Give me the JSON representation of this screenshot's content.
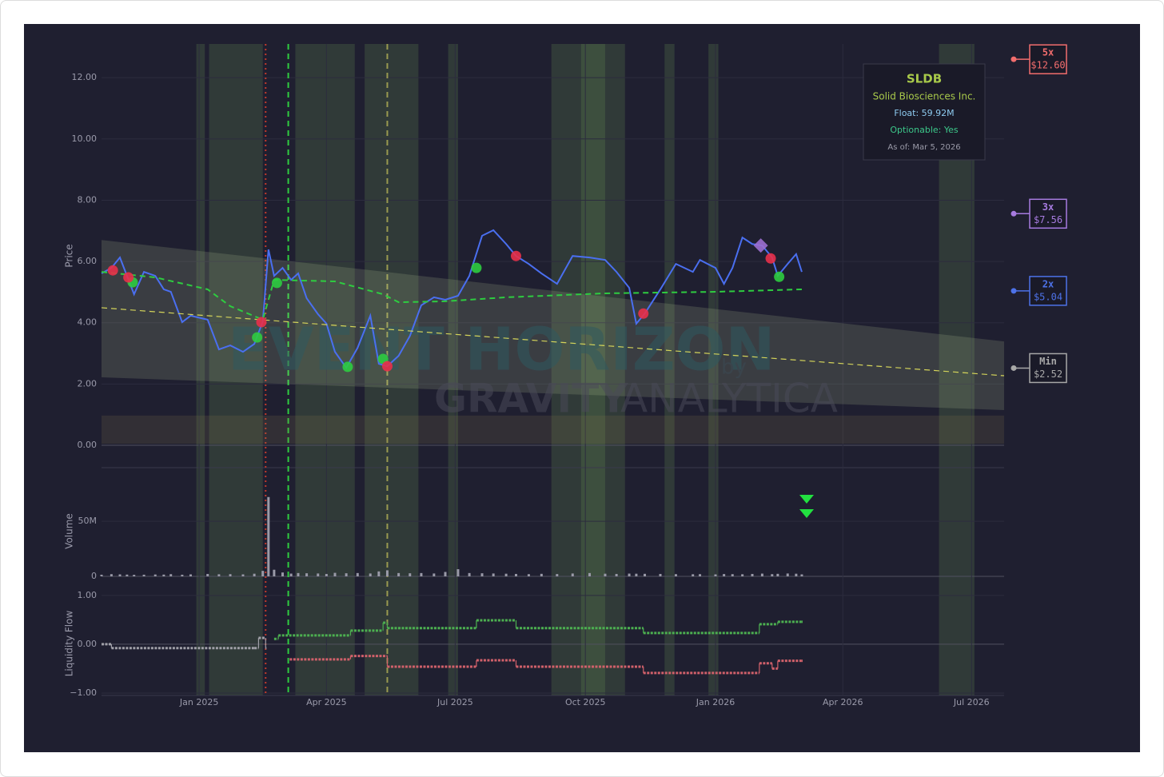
{
  "chart_data": [
    {
      "type": "line",
      "ylabel": "Price",
      "xlim": [
        "2024-10-24",
        "2026-07-24"
      ],
      "ylim": [
        -0.73,
        13.1
      ],
      "yticks": [
        {
          "value": 0,
          "label": "0.00"
        },
        {
          "value": 2,
          "label": "2.00"
        },
        {
          "value": 4,
          "label": "4.00"
        },
        {
          "value": 6,
          "label": "6.00"
        },
        {
          "value": 8,
          "label": "8.00"
        },
        {
          "value": 10,
          "label": "10.00"
        },
        {
          "value": 12,
          "label": "12.00"
        }
      ],
      "grid": true,
      "series": [
        {
          "color": "#4a6ff0",
          "width": 2,
          "x": [
            "2024-10-24",
            "2024-10-31",
            "2024-11-06",
            "2024-11-11",
            "2024-11-16",
            "2024-11-23",
            "2024-12-01",
            "2024-12-07",
            "2024-12-12",
            "2024-12-20",
            "2024-12-26",
            "2025-01-07",
            "2025-01-15",
            "2025-01-23",
            "2025-02-01",
            "2025-02-09",
            "2025-02-15",
            "2025-02-19",
            "2025-02-23",
            "2025-03-01",
            "2025-03-07",
            "2025-03-12",
            "2025-03-18",
            "2025-03-26",
            "2025-04-01",
            "2025-04-07",
            "2025-04-15",
            "2025-04-23",
            "2025-05-02",
            "2025-05-08",
            "2025-05-14",
            "2025-05-22",
            "2025-05-30",
            "2025-06-07",
            "2025-06-16",
            "2025-06-24",
            "2025-07-03",
            "2025-07-11",
            "2025-07-20",
            "2025-07-28",
            "2025-08-06",
            "2025-08-13",
            "2025-08-22",
            "2025-08-31",
            "2025-09-11",
            "2025-09-22",
            "2025-10-04",
            "2025-10-15",
            "2025-10-23",
            "2025-11-01",
            "2025-11-06",
            "2025-11-12",
            "2025-11-23",
            "2025-12-04",
            "2025-12-16",
            "2025-12-21",
            "2026-01-01",
            "2026-01-07",
            "2026-01-13",
            "2026-01-20",
            "2026-01-27",
            "2026-02-03",
            "2026-02-10",
            "2026-02-14",
            "2026-02-21",
            "2026-02-27",
            "2026-03-03"
          ],
          "values": [
            5.61,
            5.79,
            6.13,
            5.53,
            4.93,
            5.66,
            5.53,
            5.09,
            5.01,
            4.02,
            4.23,
            4.1,
            3.13,
            3.26,
            3.05,
            3.31,
            4.04,
            6.39,
            5.53,
            5.79,
            5.4,
            5.61,
            4.8,
            4.28,
            3.97,
            3.05,
            2.53,
            3.18,
            4.23,
            2.66,
            2.58,
            2.92,
            3.57,
            4.57,
            4.83,
            4.75,
            4.88,
            5.53,
            6.84,
            7.02,
            6.57,
            6.18,
            5.92,
            5.61,
            5.27,
            6.18,
            6.13,
            6.05,
            5.66,
            5.14,
            3.97,
            4.3,
            5.09,
            5.92,
            5.66,
            6.05,
            5.79,
            5.27,
            5.79,
            6.78,
            6.57,
            6.52,
            6.13,
            5.53,
            5.92,
            6.24,
            5.66
          ]
        },
        {
          "color": "#2ecc40",
          "width": 2,
          "dash": "dash",
          "x": [
            "2024-10-24",
            "2024-12-01",
            "2025-01-07",
            "2025-01-23",
            "2025-02-15",
            "2025-02-23",
            "2025-04-07",
            "2025-05-11",
            "2025-05-22",
            "2025-06-24",
            "2025-08-06",
            "2025-10-15",
            "2026-01-01",
            "2026-03-03"
          ],
          "values": [
            5.66,
            5.48,
            5.09,
            4.54,
            4.1,
            5.4,
            5.35,
            4.93,
            4.67,
            4.7,
            4.83,
            4.96,
            5.01,
            5.09
          ]
        },
        {
          "color": "#d4d45a",
          "width": 1.2,
          "dash": "dash",
          "x": [
            "2024-10-24",
            "2026-07-24"
          ],
          "values": [
            4.49,
            2.27
          ]
        }
      ],
      "channel": {
        "color": "#c8d8a0",
        "x": [
          "2024-10-24",
          "2026-07-24"
        ],
        "upper": [
          6.7,
          3.39
        ],
        "lower": [
          2.22,
          1.15
        ]
      },
      "support_band": [
        0.05,
        0.97
      ],
      "highlight_periods": [
        [
          "2024-12-30",
          "2025-01-05"
        ],
        [
          "2025-01-08",
          "2025-02-15"
        ],
        [
          "2025-03-10",
          "2025-04-21"
        ],
        [
          "2025-04-28",
          "2025-06-05"
        ],
        [
          "2025-06-26",
          "2025-07-03"
        ],
        [
          "2025-09-07",
          "2025-10-29"
        ],
        [
          "2025-09-28",
          "2025-10-15"
        ],
        [
          "2025-11-26",
          "2025-12-03"
        ],
        [
          "2025-12-27",
          "2026-01-03"
        ],
        [
          "2026-06-08",
          "2026-07-03"
        ]
      ],
      "highlight_color": "#6f9a55",
      "event_lines": [
        {
          "x": "2025-02-17",
          "color": "#c0392b",
          "dash": "dot"
        },
        {
          "x": "2025-03-05",
          "color": "#2ecc40",
          "dash": "dash"
        },
        {
          "x": "2025-05-14",
          "color": "#9a9a50",
          "dash": "dash"
        }
      ],
      "signals": [
        {
          "color": "#2ecc40",
          "marker": "circle",
          "x": [
            "2024-11-15",
            "2025-02-11",
            "2025-02-25",
            "2025-04-16",
            "2025-05-11",
            "2025-07-16",
            "2026-02-15"
          ],
          "values": [
            5.32,
            3.52,
            5.3,
            2.56,
            2.82,
            5.79,
            5.5
          ]
        },
        {
          "color": "#e8304a",
          "marker": "circle",
          "x": [
            "2024-11-01",
            "2024-11-12",
            "2025-02-14",
            "2025-05-14",
            "2025-08-13",
            "2025-11-11",
            "2026-02-09"
          ],
          "values": [
            5.71,
            5.48,
            4.02,
            2.58,
            6.18,
            4.3,
            6.1
          ]
        },
        {
          "color": "#9b6fd0",
          "marker": "diamond",
          "x": [
            "2026-02-02"
          ],
          "values": [
            6.52
          ]
        }
      ],
      "levels": {
        "names": [
          "5x",
          "3x",
          "2x",
          "Min"
        ],
        "values": [
          12.6,
          7.56,
          5.04,
          2.52
        ],
        "value_labels": [
          "$12.60",
          "$7.56",
          "$5.04",
          "$2.52"
        ],
        "colors": [
          "#f26d6d",
          "#a77be0",
          "#4d72e8",
          "#a8a8a8"
        ]
      }
    },
    {
      "type": "bar",
      "ylabel": "Volume",
      "xlim": [
        "2024-10-24",
        "2026-07-24"
      ],
      "ylim": [
        0,
        82000000
      ],
      "yticks": [
        0,
        {
          "value": 50000000,
          "label": "50M"
        }
      ],
      "color": "#9a9aa8",
      "x": [
        "2024-10-24",
        "2024-10-31",
        "2024-11-06",
        "2024-11-11",
        "2024-11-16",
        "2024-11-23",
        "2024-12-01",
        "2024-12-07",
        "2024-12-12",
        "2024-12-20",
        "2024-12-26",
        "2025-01-07",
        "2025-01-15",
        "2025-01-23",
        "2025-02-01",
        "2025-02-09",
        "2025-02-15",
        "2025-02-19",
        "2025-02-23",
        "2025-03-01",
        "2025-03-07",
        "2025-03-12",
        "2025-03-18",
        "2025-03-26",
        "2025-04-01",
        "2025-04-07",
        "2025-04-15",
        "2025-04-23",
        "2025-05-02",
        "2025-05-08",
        "2025-05-14",
        "2025-05-22",
        "2025-05-30",
        "2025-06-07",
        "2025-06-16",
        "2025-06-24",
        "2025-07-03",
        "2025-07-11",
        "2025-07-20",
        "2025-07-28",
        "2025-08-06",
        "2025-08-13",
        "2025-08-22",
        "2025-08-31",
        "2025-09-11",
        "2025-09-22",
        "2025-10-04",
        "2025-10-15",
        "2025-10-23",
        "2025-11-01",
        "2025-11-06",
        "2025-11-12",
        "2025-11-23",
        "2025-12-04",
        "2025-12-16",
        "2025-12-21",
        "2026-01-01",
        "2026-01-07",
        "2026-01-13",
        "2026-01-20",
        "2026-01-27",
        "2026-02-03",
        "2026-02-10",
        "2026-02-14",
        "2026-02-21",
        "2026-02-27",
        "2026-03-03"
      ],
      "values": [
        1500000,
        2000000,
        1800000,
        1600000,
        1400000,
        1500000,
        1700000,
        1600000,
        2000000,
        1500000,
        1800000,
        2200000,
        1900000,
        2000000,
        1800000,
        2400000,
        5000000,
        72000000,
        6000000,
        3500000,
        2500000,
        3000000,
        2800000,
        2600000,
        2200000,
        3200000,
        2800000,
        3000000,
        2600000,
        4500000,
        5500000,
        3000000,
        2800000,
        3000000,
        2600000,
        4000000,
        6500000,
        3000000,
        2800000,
        2600000,
        2400000,
        2200000,
        2000000,
        2300000,
        2100000,
        2600000,
        3000000,
        2400000,
        2200000,
        2500000,
        2400000,
        2300000,
        2200000,
        2000000,
        1900000,
        2000000,
        1800000,
        2100000,
        2000000,
        1900000,
        2200000,
        2500000,
        2000000,
        2300000,
        2600000,
        2400000,
        1800000
      ]
    },
    {
      "type": "line",
      "ylabel": "Liquidity Flow",
      "xlim": [
        "2024-10-24",
        "2026-07-24"
      ],
      "ylim": [
        -1.05,
        1.08
      ],
      "yticks": [
        {
          "value": -1,
          "label": "−1.00"
        },
        {
          "value": 0,
          "label": "0.00"
        },
        {
          "value": 1,
          "label": "1.00"
        }
      ],
      "xticks": [
        {
          "value": "2025-01-01",
          "label": "Jan 2025"
        },
        {
          "value": "2025-04-01",
          "label": "Apr 2025"
        },
        {
          "value": "2025-07-01",
          "label": "Jul 2025"
        },
        {
          "value": "2025-10-01",
          "label": "Oct 2025"
        },
        {
          "value": "2026-01-01",
          "label": "Jan 2026"
        },
        {
          "value": "2026-04-01",
          "label": "Apr 2026"
        },
        {
          "value": "2026-07-01",
          "label": "Jul 2026"
        }
      ],
      "step": true,
      "series": [
        {
          "color": "#a0a0a8",
          "x": [
            "2024-10-24",
            "2024-10-31",
            "2025-02-09",
            "2025-02-12",
            "2025-02-17"
          ],
          "values": [
            0.0,
            -0.08,
            -0.08,
            0.13,
            -0.08
          ]
        },
        {
          "color": "#4caf50",
          "x": [
            "2025-02-23",
            "2025-02-26",
            "2025-04-18",
            "2025-05-11",
            "2025-05-14",
            "2025-07-16",
            "2025-08-13",
            "2025-11-11",
            "2026-02-01",
            "2026-02-14",
            "2026-03-03"
          ],
          "values": [
            0.11,
            0.18,
            0.28,
            0.44,
            0.33,
            0.49,
            0.33,
            0.23,
            0.41,
            0.46,
            0.46
          ]
        },
        {
          "color": "#d0606a",
          "x": [
            "2025-03-06",
            "2025-04-18",
            "2025-05-14",
            "2025-07-16",
            "2025-08-13",
            "2025-11-11",
            "2026-02-01",
            "2026-02-10",
            "2026-02-14",
            "2026-03-03"
          ],
          "values": [
            -0.31,
            -0.24,
            -0.46,
            -0.33,
            -0.46,
            -0.59,
            -0.39,
            -0.5,
            -0.34,
            -0.34
          ]
        }
      ]
    }
  ],
  "info_box": {
    "ticker": "SLDB",
    "name": "Solid Biosciences Inc.",
    "float": "Float: 59.92M",
    "optionable": "Optionable: Yes",
    "as_of": "As of: Mar 5, 2026"
  },
  "watermark": {
    "title": "EVENT HORIZON",
    "by": "by",
    "brand_bold": "GRAVITY",
    "brand_light": "ANALYTICA"
  }
}
